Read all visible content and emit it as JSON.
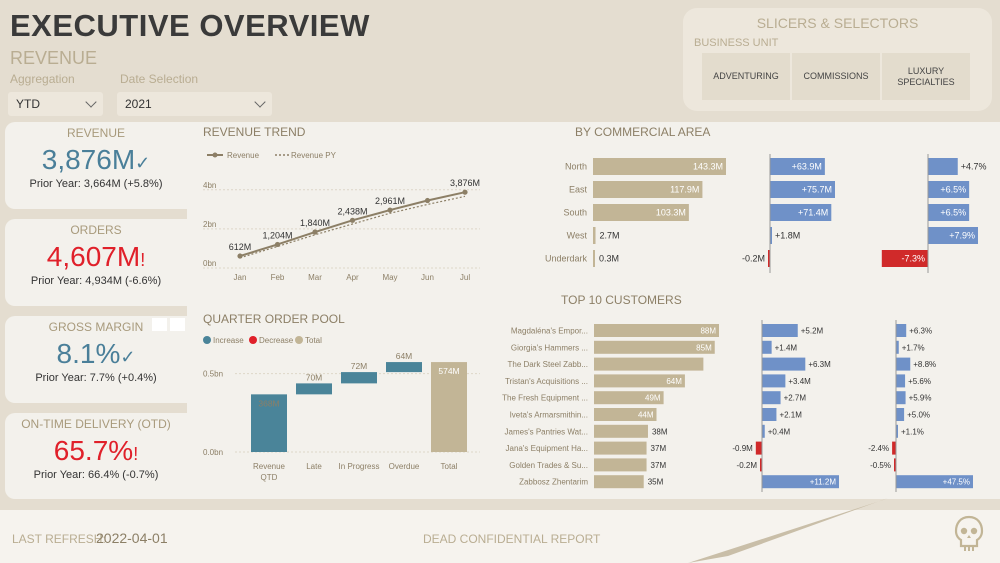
{
  "header": {
    "title": "EXECUTIVE OVERVIEW",
    "subtitle": "REVENUE",
    "aggregation_label": "Aggregation",
    "aggregation_value": "YTD",
    "date_label": "Date Selection",
    "date_value": "2021"
  },
  "slicers": {
    "title": "SLICERS & SELECTORS",
    "business_unit_label": "BUSINESS UNIT",
    "options": [
      "ADVENTURING",
      "COMMISSIONS",
      "LUXURY SPECIALTIES"
    ]
  },
  "kpis": [
    {
      "title": "REVENUE",
      "value": "3,876M",
      "mark": "✓",
      "prior": "Prior Year: 3,664M (+5.8%)",
      "color": "#4a7f99"
    },
    {
      "title": "ORDERS",
      "value": "4,607M",
      "mark": "!",
      "prior": "Prior Year: 4,934M (-6.6%)",
      "color": "#e0202a"
    },
    {
      "title": "GROSS MARGIN",
      "value": "8.1%",
      "mark": "✓",
      "prior": "Prior Year: 7.7% (+0.4%)",
      "color": "#4a7f99"
    },
    {
      "title": "ON-TIME DELIVERY (OTD)",
      "value": "65.7%",
      "mark": "!",
      "prior": "Prior Year: 66.4% (-0.7%)",
      "color": "#e0202a"
    }
  ],
  "revenue_trend": {
    "title": "REVENUE TREND",
    "legend": [
      "Revenue",
      "Revenue PY"
    ],
    "months": [
      "Jan",
      "Feb",
      "Mar",
      "Apr",
      "May",
      "Jun",
      "Jul"
    ],
    "yticks": [
      "0bn",
      "2bn",
      "4bn"
    ],
    "values": [
      612,
      1204,
      1840,
      2438,
      2961,
      3450,
      3876
    ],
    "labels": [
      "612M",
      "1,204M",
      "1,840M",
      "2,438M",
      "2,961M",
      "",
      "3,876M"
    ],
    "py_values": [
      520,
      1100,
      1700,
      2250,
      2800,
      3250,
      3664
    ],
    "ylim": [
      0,
      4500
    ]
  },
  "quarter_pool": {
    "title": "QUARTER ORDER POOL",
    "legend": [
      "Increase",
      "Decrease",
      "Total"
    ],
    "categories": [
      "Revenue QTD",
      "Late",
      "In Progress",
      "Overdue",
      "Total"
    ],
    "values": [
      368,
      70,
      72,
      64,
      574
    ],
    "labels": [
      "368M",
      "70M",
      "72M",
      "64M",
      "574M"
    ],
    "yticks": [
      "0.0bn",
      "0.5bn"
    ],
    "colors": {
      "increase": "#4a8499",
      "decrease": "#e0202a",
      "total": "#c2b596"
    }
  },
  "commercial_area": {
    "title": "BY COMMERCIAL AREA",
    "areas": [
      "North",
      "East",
      "South",
      "West",
      "Underdark"
    ],
    "values": [
      143.3,
      117.9,
      103.3,
      2.7,
      0.3
    ],
    "labels": [
      "143.3M",
      "117.9M",
      "103.3M",
      "2.7M",
      "0.3M"
    ],
    "diff_abs": [
      63.9,
      75.7,
      71.4,
      1.8,
      -0.2
    ],
    "diff_abs_labels": [
      "+63.9M",
      "+75.7M",
      "+71.4M",
      "+1.8M",
      "-0.2M"
    ],
    "diff_pct": [
      4.7,
      6.5,
      6.5,
      7.9,
      -7.3
    ],
    "diff_pct_labels": [
      "+4.7%",
      "+6.5%",
      "+6.5%",
      "+7.9%",
      "-7.3%"
    ]
  },
  "top_customers": {
    "title": "TOP 10 CUSTOMERS",
    "names": [
      "Magdaléna's Empor...",
      "Giorgia's Hammers ...",
      "The Dark Steel Zabb...",
      "Tristan's Acquisitions ...",
      "The Fresh Equipment ...",
      "Iveta's Armarsmithin...",
      "James's Pantries Wat...",
      "Jana's Equipment Ha...",
      "Golden Trades & Su...",
      "Zabbosz Zhentarim"
    ],
    "values": [
      88,
      85,
      77,
      64,
      49,
      44,
      38,
      37,
      37,
      35
    ],
    "labels": [
      "88M",
      "85M",
      "",
      "64M",
      "49M",
      "44M",
      "38M",
      "37M",
      "37M",
      "35M"
    ],
    "diff_abs": [
      5.2,
      1.4,
      6.3,
      3.4,
      2.7,
      2.1,
      0.4,
      -0.9,
      -0.2,
      11.2
    ],
    "diff_abs_labels": [
      "+5.2M",
      "+1.4M",
      "+6.3M",
      "+3.4M",
      "+2.7M",
      "+2.1M",
      "+0.4M",
      "-0.9M",
      "-0.2M",
      "+11.2M"
    ],
    "diff_pct": [
      6.3,
      1.7,
      8.8,
      5.6,
      5.9,
      5.0,
      1.1,
      -2.4,
      -0.5,
      47.5
    ],
    "diff_pct_labels": [
      "+6.3%",
      "+1.7%",
      "+8.8%",
      "+5.6%",
      "+5.9%",
      "+5.0%",
      "+1.1%",
      "-2.4%",
      "-0.5%",
      "+47.5%"
    ]
  },
  "footer": {
    "refresh_label": "LAST REFRESH:",
    "refresh_date": "2022-04-01",
    "center_text": "DEAD CONFIDENTIAL REPORT",
    "logo_icon": "skull-icon"
  }
}
